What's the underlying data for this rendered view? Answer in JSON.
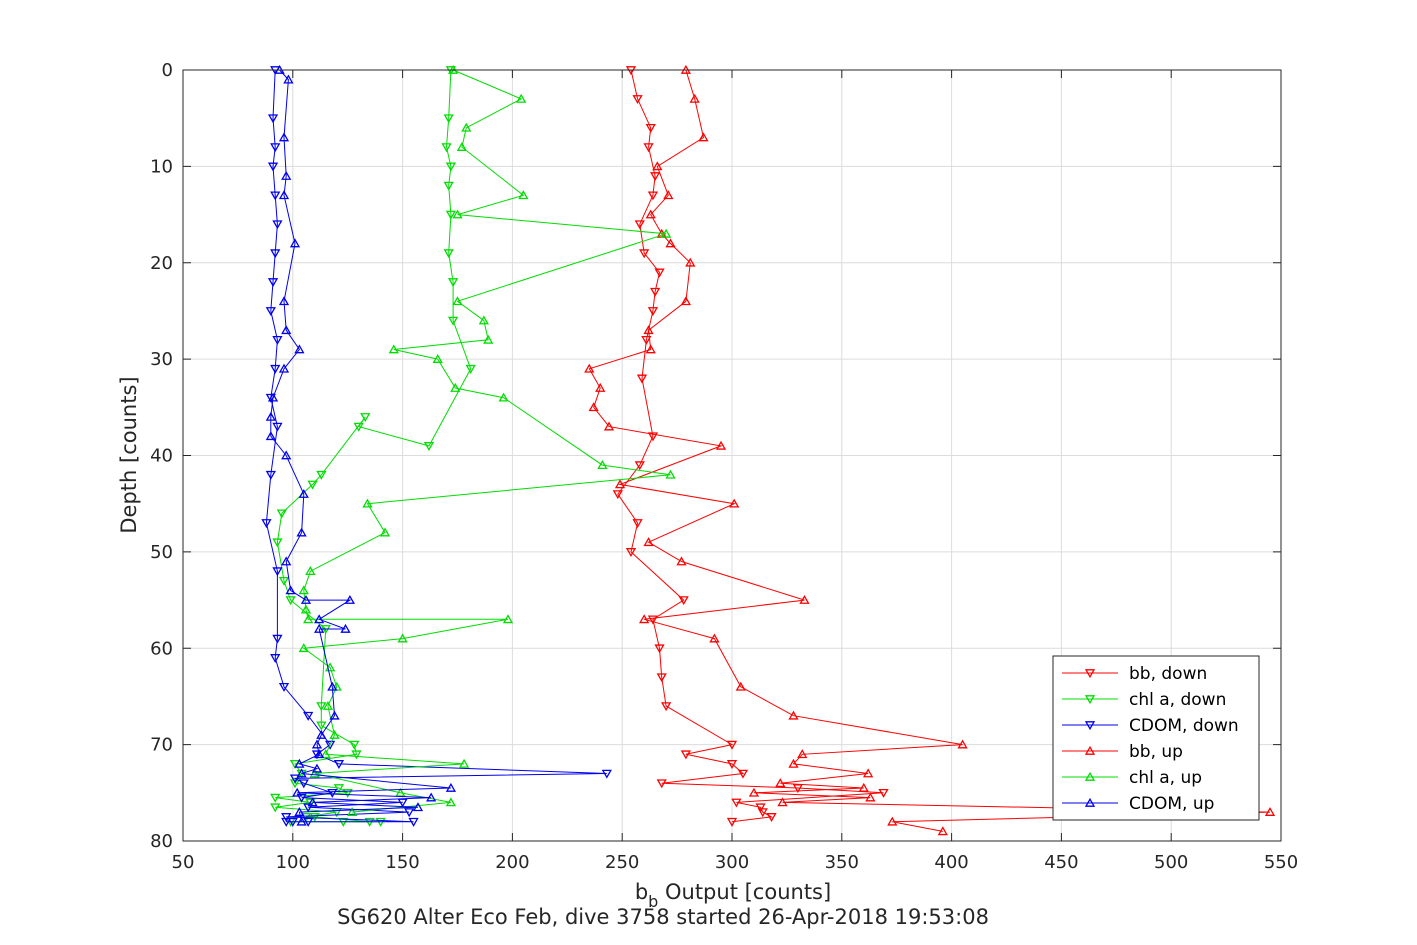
{
  "chart_data": {
    "type": "line",
    "title": "",
    "xlabel_main": "b",
    "xlabel_sub": "b",
    "xlabel_rest": " Output [counts]",
    "ylabel": "Depth [counts]",
    "caption": "SG620 Alter Eco Feb, dive 3758 started 26-Apr-2018 19:53:08",
    "xlim": [
      50,
      550
    ],
    "ylim": [
      0,
      80
    ],
    "y_reversed": true,
    "grid": true,
    "legend_placement": "bottom-right",
    "xticks": [
      "50",
      "100",
      "150",
      "200",
      "250",
      "300",
      "350",
      "400",
      "450",
      "500",
      "550"
    ],
    "yticks": [
      "0",
      "10",
      "20",
      "30",
      "40",
      "50",
      "60",
      "70",
      "80"
    ],
    "series": [
      {
        "name": "bb, down",
        "color": "#ff0000",
        "marker": "triangle-down",
        "x": [
          254,
          257,
          263,
          262,
          265,
          264,
          258,
          260,
          267,
          265,
          264,
          261,
          259,
          264,
          258,
          248,
          257,
          254,
          278,
          264,
          267,
          268,
          270,
          300,
          279,
          300,
          305,
          268,
          330,
          369,
          302,
          313,
          314,
          318,
          300
        ],
        "y": [
          0,
          3,
          6,
          8,
          11,
          13,
          16,
          19,
          21,
          23,
          25,
          28,
          32,
          38,
          41,
          44,
          47,
          50,
          55,
          57,
          60,
          63,
          66,
          70,
          71,
          72,
          73,
          74,
          74.5,
          75,
          76,
          76.5,
          77,
          77.5,
          78
        ]
      },
      {
        "name": "chl a, down",
        "color": "#00dd00",
        "marker": "triangle-down",
        "x": [
          172,
          171,
          170,
          172,
          171,
          172,
          171,
          173,
          173,
          181,
          162,
          130,
          133,
          113,
          109,
          95,
          93,
          96,
          99,
          115,
          113,
          113,
          128,
          129,
          101,
          104,
          101,
          121,
          125,
          92,
          108,
          92,
          120,
          106,
          110,
          135,
          99,
          123,
          140
        ],
        "y": [
          0,
          5,
          8,
          10,
          12,
          15,
          19,
          22,
          26,
          31,
          39,
          37,
          36,
          42,
          43,
          46,
          49,
          53,
          55,
          58,
          66,
          68,
          70,
          71,
          72,
          73,
          74,
          74.5,
          75,
          75.5,
          76,
          76.5,
          77,
          77.5,
          77.5,
          78,
          78,
          78,
          78
        ]
      },
      {
        "name": "CDOM, down",
        "color": "#0000ee",
        "marker": "triangle-down",
        "x": [
          92,
          91,
          92,
          91,
          92,
          93,
          92,
          91,
          90,
          93,
          92,
          90,
          93,
          90,
          88,
          93,
          93,
          92,
          96,
          107,
          117,
          111,
          121,
          243,
          101,
          105,
          118,
          104,
          150,
          107,
          153,
          97,
          155,
          107,
          100,
          97
        ],
        "y": [
          0,
          5,
          8,
          10,
          13,
          16,
          19,
          22,
          25,
          28,
          31,
          34,
          37,
          42,
          47,
          52,
          59,
          61,
          64,
          67,
          70,
          71,
          72,
          73,
          73.5,
          74,
          75,
          75.5,
          76,
          76.5,
          77,
          77.5,
          78,
          78,
          78,
          78
        ]
      },
      {
        "name": "bb, up",
        "color": "#ff0000",
        "marker": "triangle-up",
        "x": [
          279,
          283,
          287,
          266,
          271,
          263,
          268,
          272,
          281,
          279,
          262,
          263,
          235,
          240,
          237,
          244,
          295,
          249,
          301,
          262,
          277,
          333,
          260,
          292,
          304,
          328,
          405,
          332,
          328,
          362,
          322,
          360,
          310,
          363,
          323,
          545,
          373,
          396
        ],
        "y": [
          0,
          3,
          7,
          10,
          13,
          15,
          17,
          18,
          20,
          24,
          27,
          29,
          31,
          33,
          35,
          37,
          39,
          43,
          45,
          49,
          51,
          55,
          57,
          59,
          64,
          67,
          70,
          71,
          72,
          73,
          74,
          74.5,
          75,
          75.5,
          76,
          77,
          78,
          79
        ]
      },
      {
        "name": "chl a, up",
        "color": "#00dd00",
        "marker": "triangle-up",
        "x": [
          173,
          204,
          179,
          177,
          205,
          175,
          270,
          175,
          187,
          189,
          146,
          166,
          174,
          196,
          241,
          272,
          134,
          142,
          108,
          105,
          106,
          107,
          198,
          150,
          105,
          117,
          120,
          116,
          119,
          115,
          178,
          110,
          149,
          172,
          127
        ],
        "y": [
          0,
          3,
          6,
          8,
          13,
          15,
          17,
          24,
          26,
          28,
          29,
          30,
          33,
          34,
          41,
          42,
          45,
          48,
          52,
          54,
          56,
          57,
          57,
          59,
          60,
          62,
          64,
          66,
          69,
          71,
          72,
          73,
          75,
          76,
          77
        ]
      },
      {
        "name": "CDOM, up",
        "color": "#0000ee",
        "marker": "triangle-up",
        "x": [
          94,
          98,
          96,
          97,
          96,
          101,
          96,
          97,
          103,
          96,
          91,
          90,
          90,
          97,
          105,
          104,
          97,
          99,
          106,
          126,
          112,
          124,
          112,
          118,
          119,
          113,
          111,
          112,
          103,
          111,
          104,
          172,
          102,
          163,
          109,
          157,
          103,
          104
        ],
        "y": [
          0,
          1,
          7,
          11,
          13,
          18,
          24,
          27,
          29,
          31,
          34,
          36,
          38,
          40,
          44,
          48,
          51,
          54,
          55,
          55,
          57,
          58,
          58,
          64,
          67,
          69,
          70,
          71,
          72,
          72.5,
          73,
          74.5,
          75,
          75.5,
          76,
          76.5,
          77,
          78
        ]
      }
    ]
  }
}
